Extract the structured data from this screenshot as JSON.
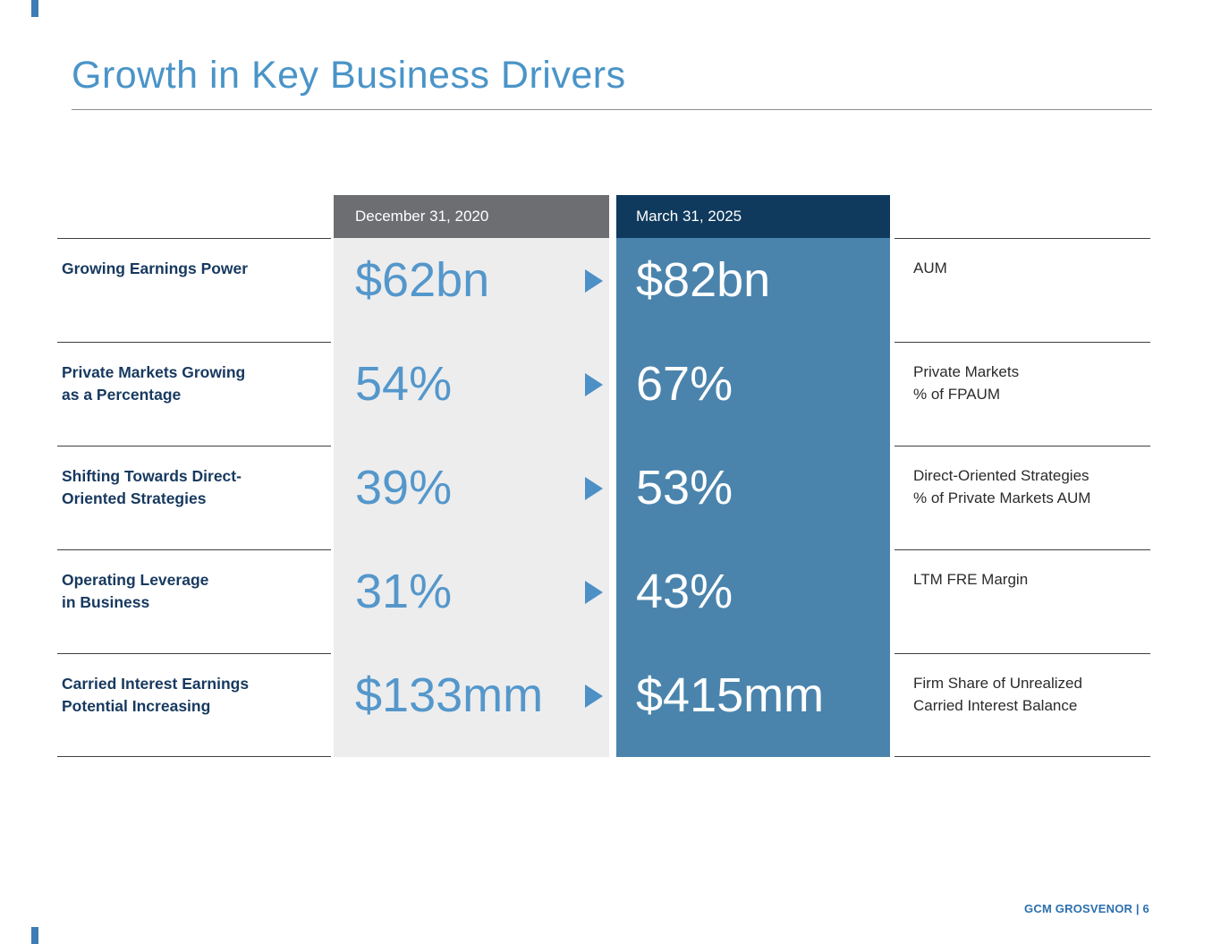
{
  "slide": {
    "title": "Growth in Key Business Drivers",
    "footer": "GCM GROSVENOR | 6"
  },
  "table": {
    "headers": {
      "before": "December 31, 2020",
      "after": "March 31, 2025"
    },
    "rows": [
      {
        "label": "Growing Earnings Power",
        "before": "$62bn",
        "after": "$82bn",
        "metric": "AUM"
      },
      {
        "label": "Private Markets Growing\nas a Percentage",
        "before": "54%",
        "after": "67%",
        "metric": "Private Markets\n% of FPAUM"
      },
      {
        "label": "Shifting Towards Direct-\nOriented Strategies",
        "before": "39%",
        "after": "53%",
        "metric": "Direct-Oriented Strategies\n% of Private Markets AUM"
      },
      {
        "label": "Operating Leverage\nin Business",
        "before": "31%",
        "after": "43%",
        "metric": "LTM FRE Margin"
      },
      {
        "label": "Carried Interest Earnings\nPotential Increasing",
        "before": "$133mm",
        "after": "$415mm",
        "metric": "Firm Share of Unrealized\nCarried Interest Balance"
      }
    ]
  },
  "colors": {
    "title_blue": "#4A94C8",
    "header_gray": "#6D6E71",
    "header_navy": "#0F3A5D",
    "column_gray": "#EDEDEE",
    "column_blue": "#4A84AD",
    "value_blue": "#5497CB",
    "label_navy": "#17395F",
    "arrow_blue": "#4C90C6",
    "footer_blue": "#2C6FAD",
    "accent_blue": "#3E7CB6"
  }
}
